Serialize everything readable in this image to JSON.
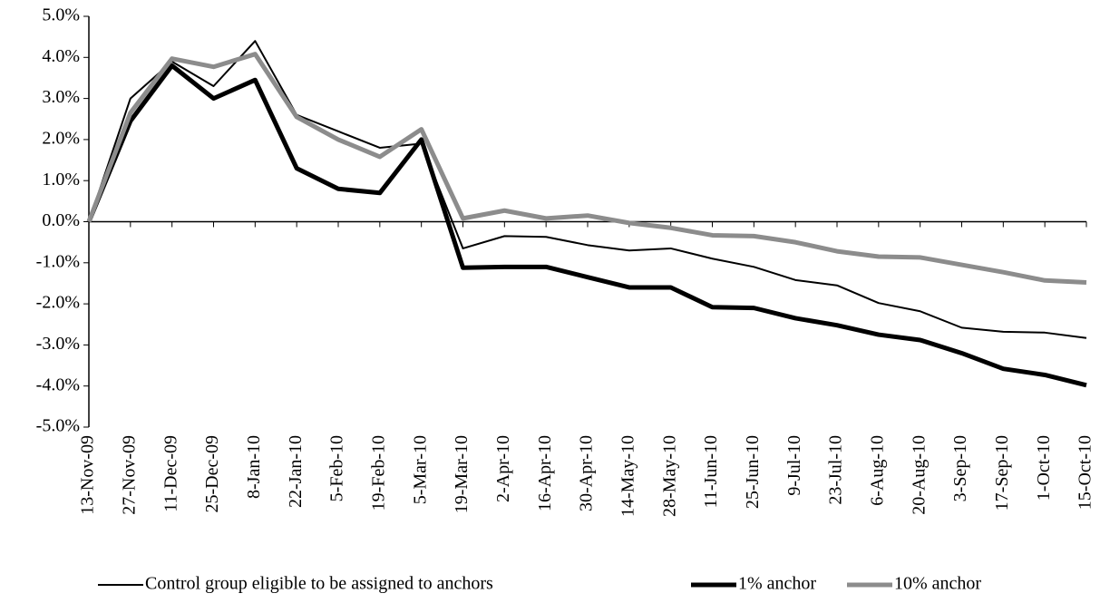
{
  "chart_data": {
    "type": "line",
    "categories": [
      "13-Nov-09",
      "27-Nov-09",
      "11-Dec-09",
      "25-Dec-09",
      "8-Jan-10",
      "22-Jan-10",
      "5-Feb-10",
      "19-Feb-10",
      "5-Mar-10",
      "19-Mar-10",
      "2-Apr-10",
      "16-Apr-10",
      "30-Apr-10",
      "14-May-10",
      "28-May-10",
      "11-Jun-10",
      "25-Jun-10",
      "9-Jul-10",
      "23-Jul-10",
      "6-Aug-10",
      "20-Aug-10",
      "3-Sep-10",
      "17-Sep-10",
      "1-Oct-10",
      "15-Oct-10"
    ],
    "series": [
      {
        "name": "Control group eligible to be assigned to anchors",
        "color": "#000000",
        "width": 2,
        "values": [
          0,
          3.0,
          3.9,
          3.3,
          4.4,
          2.6,
          2.2,
          1.8,
          1.9,
          -0.65,
          -0.35,
          -0.37,
          -0.57,
          -0.7,
          -0.65,
          -0.9,
          -1.1,
          -1.42,
          -1.55,
          -1.98,
          -2.18,
          -2.58,
          -2.68,
          -2.7,
          -2.83
        ]
      },
      {
        "name": "1% anchor",
        "color": "#000000",
        "width": 5,
        "values": [
          0,
          2.45,
          3.8,
          3.0,
          3.45,
          1.3,
          0.8,
          0.7,
          2.0,
          -1.12,
          -1.1,
          -1.1,
          -1.35,
          -1.6,
          -1.6,
          -2.08,
          -2.1,
          -2.35,
          -2.52,
          -2.75,
          -2.88,
          -3.2,
          -3.58,
          -3.73,
          -3.98
        ]
      },
      {
        "name": "10% anchor",
        "color": "#8c8c8c",
        "width": 5,
        "values": [
          0,
          2.65,
          3.97,
          3.77,
          4.08,
          2.55,
          2.0,
          1.58,
          2.25,
          0.08,
          0.27,
          0.08,
          0.15,
          -0.03,
          -0.15,
          -0.33,
          -0.35,
          -0.5,
          -0.72,
          -0.85,
          -0.87,
          -1.05,
          -1.23,
          -1.43,
          -1.48
        ]
      }
    ],
    "ylim": [
      -5,
      5
    ],
    "yticks": [
      {
        "value": -5,
        "label": "-5.0%"
      },
      {
        "value": -4,
        "label": "-4.0%"
      },
      {
        "value": -3,
        "label": "-3.0%"
      },
      {
        "value": -2,
        "label": "-2.0%"
      },
      {
        "value": -1,
        "label": "-1.0%"
      },
      {
        "value": 0,
        "label": "0.0%"
      },
      {
        "value": 1,
        "label": "1.0%"
      },
      {
        "value": 2,
        "label": "2.0%"
      },
      {
        "value": 3,
        "label": "3.0%"
      },
      {
        "value": 4,
        "label": "4.0%"
      },
      {
        "value": 5,
        "label": "5.0%"
      }
    ],
    "grid": false,
    "legend": "bottom"
  }
}
